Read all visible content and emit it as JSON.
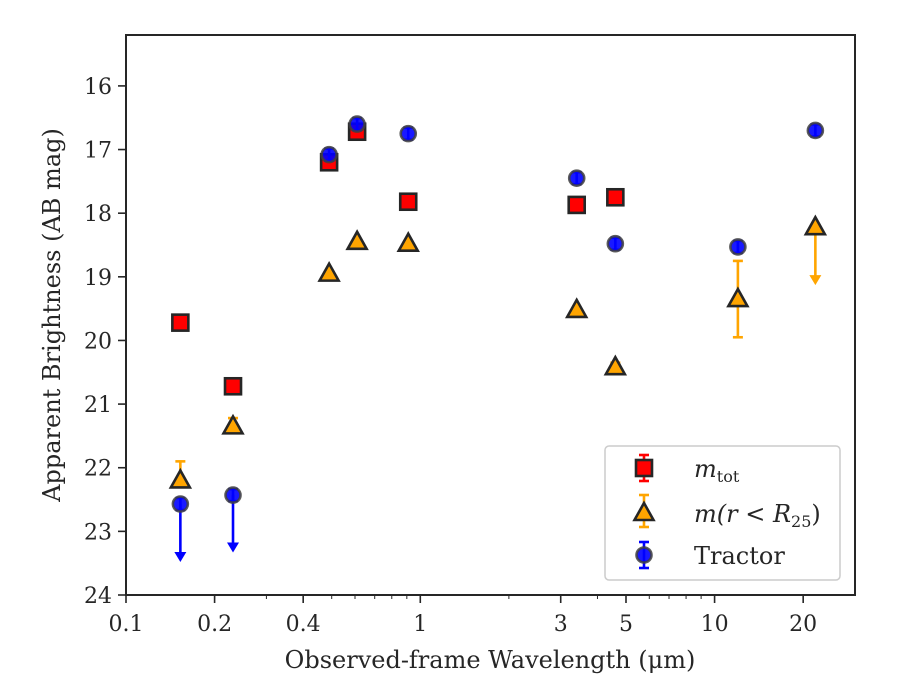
{
  "chart_data": {
    "type": "scatter",
    "title": "",
    "xlabel": "Observed-frame Wavelength (μm)",
    "ylabel": "Apparent Brightness (AB mag)",
    "xscale": "log",
    "xlim": [
      0.1,
      30
    ],
    "ylim": [
      24,
      15.2
    ],
    "y_inverted": true,
    "xticks": [
      {
        "value": 0.1,
        "label": "0.1"
      },
      {
        "value": 0.2,
        "label": "0.2"
      },
      {
        "value": 0.4,
        "label": "0.4"
      },
      {
        "value": 1,
        "label": "1"
      },
      {
        "value": 3,
        "label": "3"
      },
      {
        "value": 5,
        "label": "5"
      },
      {
        "value": 10,
        "label": "10"
      },
      {
        "value": 20,
        "label": "20"
      }
    ],
    "yticks": [
      16,
      17,
      18,
      19,
      20,
      21,
      22,
      23,
      24
    ],
    "grid": false,
    "legend_position": "lower-right",
    "series": [
      {
        "name": "m_tot",
        "marker": "square",
        "color": "#ff0000",
        "errcolor": "#ff0000",
        "points": [
          {
            "x": 0.153,
            "y": 19.72
          },
          {
            "x": 0.231,
            "y": 20.72
          },
          {
            "x": 0.49,
            "y": 17.2
          },
          {
            "x": 0.61,
            "y": 16.72
          },
          {
            "x": 0.91,
            "y": 17.82
          },
          {
            "x": 3.4,
            "y": 17.87
          },
          {
            "x": 4.6,
            "y": 17.75
          }
        ]
      },
      {
        "name": "m(r < R25)",
        "marker": "triangle",
        "color": "#ffa500",
        "errcolor": "#ffa500",
        "points": [
          {
            "x": 0.153,
            "y": 22.2,
            "err_low": 22.3,
            "err_high": 21.9
          },
          {
            "x": 0.231,
            "y": 21.35,
            "err_low": 21.42,
            "err_high": 21.22
          },
          {
            "x": 0.49,
            "y": 18.95
          },
          {
            "x": 0.61,
            "y": 18.45
          },
          {
            "x": 0.91,
            "y": 18.48
          },
          {
            "x": 3.4,
            "y": 19.52
          },
          {
            "x": 4.6,
            "y": 20.42,
            "err_low": 20.48,
            "err_high": 20.35
          },
          {
            "x": 12.0,
            "y": 19.35,
            "err_low": 19.95,
            "err_high": 18.75
          },
          {
            "x": 22.0,
            "y": 18.22,
            "upper_limit": true,
            "arrow_to": 19.1
          }
        ]
      },
      {
        "name": "Tractor",
        "marker": "circle",
        "color": "#0000ff",
        "errcolor": "#0000ff",
        "points": [
          {
            "x": 0.153,
            "y": 22.57,
            "upper_limit": true,
            "arrow_to": 23.45
          },
          {
            "x": 0.231,
            "y": 22.43,
            "upper_limit": true,
            "arrow_to": 23.3
          },
          {
            "x": 0.49,
            "y": 17.08
          },
          {
            "x": 0.61,
            "y": 16.6
          },
          {
            "x": 0.91,
            "y": 16.75
          },
          {
            "x": 3.4,
            "y": 17.45
          },
          {
            "x": 4.6,
            "y": 18.48
          },
          {
            "x": 12.0,
            "y": 18.53
          },
          {
            "x": 22.0,
            "y": 16.7
          }
        ]
      }
    ]
  },
  "legend": {
    "items": [
      {
        "key": "mtot",
        "main": "m",
        "sub": "tot",
        "marker": "square",
        "color": "#ff0000",
        "errcolor": "#ff0000"
      },
      {
        "key": "mr25",
        "main": "m(r < R",
        "sub": "25",
        "tail": ")",
        "marker": "triangle",
        "color": "#ffa500",
        "errcolor": "#ffa500"
      },
      {
        "key": "tractor",
        "main": "Tractor",
        "marker": "circle",
        "color": "#0000ff",
        "errcolor": "#0000ff"
      }
    ]
  }
}
